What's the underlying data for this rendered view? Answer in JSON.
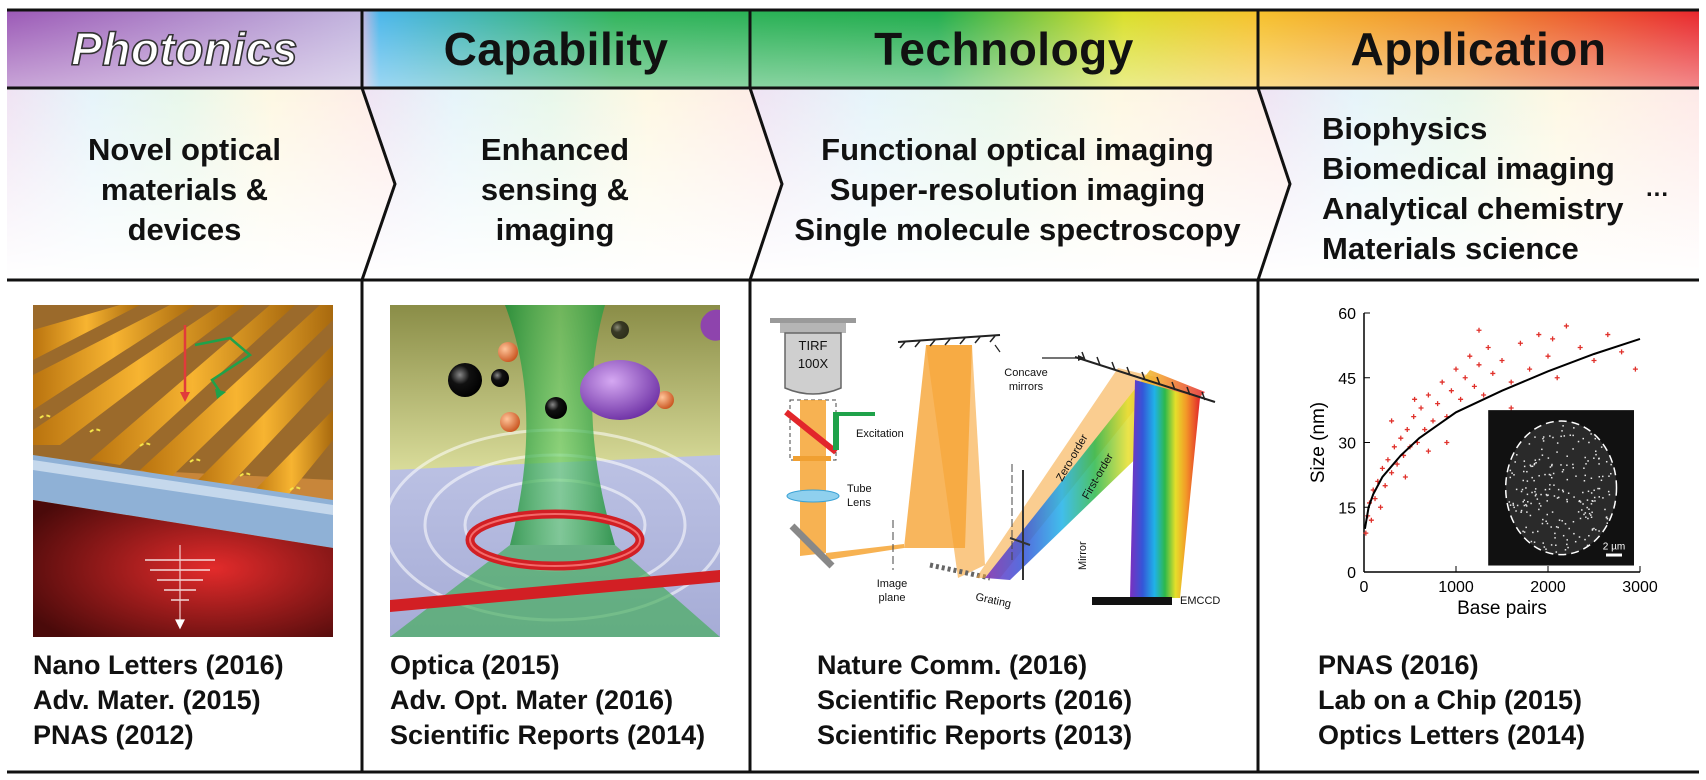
{
  "headers": [
    "Photonics",
    "Capability",
    "Technology",
    "Application"
  ],
  "descriptions": {
    "photonics": [
      "Novel optical",
      "materials &",
      "devices"
    ],
    "capability": [
      "Enhanced",
      "sensing &",
      "imaging"
    ],
    "technology": [
      "Functional optical imaging",
      "Super-resolution imaging",
      "Single molecule spectroscopy"
    ],
    "application": [
      "Biophysics",
      "Biomedical imaging",
      "Analytical chemistry",
      "Materials science"
    ],
    "application_ellipsis": "..."
  },
  "citations": {
    "photonics": [
      "Nano Letters (2016)",
      "Adv. Mater. (2015)",
      "PNAS (2012)"
    ],
    "capability": [
      "Optica (2015)",
      "Adv. Opt. Mater (2016)",
      "Scientific Reports (2014)"
    ],
    "technology": [
      "Nature Comm. (2016)",
      "Scientific Reports (2016)",
      "Scientific Reports (2013)"
    ],
    "application": [
      "PNAS (2016)",
      "Lab on a Chip (2015)",
      "Optics Letters (2014)"
    ]
  },
  "schematic_labels": {
    "objective_top": "TIRF",
    "objective_bottom": "100X",
    "excitation": "Excitation",
    "tube_lens_1": "Tube",
    "tube_lens_2": "Lens",
    "image_plane_1": "Image",
    "image_plane_2": "plane",
    "concave_1": "Concave",
    "concave_2": "mirrors",
    "zero_order": "Zero-order",
    "first_order": "First-order",
    "mirror": "Mirror",
    "grating": "Grating",
    "detector": "EMCCD"
  },
  "chart_data": {
    "type": "scatter",
    "xlabel": "Base pairs",
    "ylabel": "Size (nm)",
    "xlim": [
      0,
      3000
    ],
    "ylim": [
      0,
      60
    ],
    "xticks": [
      0,
      1000,
      2000,
      3000
    ],
    "yticks": [
      0,
      15,
      30,
      45,
      60
    ],
    "fit_curve": [
      [
        10,
        10
      ],
      [
        50,
        15
      ],
      [
        100,
        18
      ],
      [
        200,
        22
      ],
      [
        400,
        27
      ],
      [
        600,
        31
      ],
      [
        800,
        34
      ],
      [
        1000,
        37
      ],
      [
        1500,
        42
      ],
      [
        2000,
        46.5
      ],
      [
        2500,
        50.5
      ],
      [
        3000,
        54
      ]
    ],
    "points": [
      [
        20,
        9
      ],
      [
        40,
        13
      ],
      [
        60,
        16
      ],
      [
        80,
        12
      ],
      [
        100,
        19
      ],
      [
        120,
        17
      ],
      [
        150,
        21
      ],
      [
        180,
        15
      ],
      [
        200,
        24
      ],
      [
        230,
        20
      ],
      [
        260,
        26
      ],
      [
        300,
        23
      ],
      [
        330,
        29
      ],
      [
        360,
        25
      ],
      [
        400,
        31
      ],
      [
        430,
        27
      ],
      [
        470,
        33
      ],
      [
        500,
        29
      ],
      [
        540,
        36
      ],
      [
        580,
        30
      ],
      [
        620,
        38
      ],
      [
        660,
        33
      ],
      [
        700,
        41
      ],
      [
        750,
        35
      ],
      [
        800,
        39
      ],
      [
        850,
        44
      ],
      [
        900,
        36
      ],
      [
        950,
        42
      ],
      [
        1000,
        47
      ],
      [
        1050,
        40
      ],
      [
        1100,
        45
      ],
      [
        1150,
        50
      ],
      [
        1200,
        43
      ],
      [
        1250,
        48
      ],
      [
        1300,
        41
      ],
      [
        1350,
        52
      ],
      [
        1400,
        46
      ],
      [
        1500,
        49
      ],
      [
        1600,
        44
      ],
      [
        1700,
        53
      ],
      [
        1800,
        47
      ],
      [
        1900,
        55
      ],
      [
        2000,
        50
      ],
      [
        2100,
        45
      ],
      [
        2200,
        57
      ],
      [
        2350,
        52
      ],
      [
        2500,
        49
      ],
      [
        2650,
        55
      ],
      [
        2800,
        51
      ],
      [
        2950,
        47
      ],
      [
        300,
        35
      ],
      [
        450,
        22
      ],
      [
        550,
        40
      ],
      [
        700,
        28
      ],
      [
        900,
        30
      ],
      [
        1250,
        56
      ],
      [
        1600,
        38
      ],
      [
        2050,
        54
      ]
    ],
    "inset_scale_label": "2 µm",
    "point_color": "#e0312b",
    "curve_color": "#000000"
  },
  "colors": {
    "accent_green": "#1ab14a",
    "accent_red": "#d62027",
    "accent_orange": "#f6a434"
  }
}
